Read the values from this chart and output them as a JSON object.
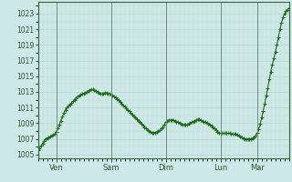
{
  "background_color": "#cce8e8",
  "plot_bg_color": "#cce8e8",
  "line_color": "#1a6e1a",
  "marker": "+",
  "marker_size": 2.5,
  "line_width": 0.8,
  "yticks": [
    1005,
    1007,
    1009,
    1011,
    1013,
    1015,
    1017,
    1019,
    1021,
    1023
  ],
  "ylim": [
    1004.5,
    1024.5
  ],
  "grid_color_major": "#b8d4b8",
  "grid_color_minor": "#c8dcc8",
  "tick_label_color": "#2a5a2a",
  "axis_label_color": "#2a5a2a",
  "xtick_labels": [
    "Ven",
    "Sam",
    "Dim",
    "Lun",
    "Mar"
  ],
  "xtick_positions": [
    12,
    48,
    84,
    120,
    144
  ],
  "vline_positions": [
    12,
    48,
    84,
    120,
    144
  ],
  "pressure": [
    1005.5,
    1005.8,
    1006.1,
    1006.4,
    1006.7,
    1007.0,
    1007.1,
    1007.2,
    1007.3,
    1007.4,
    1007.5,
    1007.6,
    1007.9,
    1008.3,
    1008.8,
    1009.3,
    1009.8,
    1010.3,
    1010.7,
    1011.0,
    1011.2,
    1011.4,
    1011.6,
    1011.8,
    1012.0,
    1012.2,
    1012.4,
    1012.5,
    1012.6,
    1012.7,
    1012.8,
    1012.9,
    1013.0,
    1013.1,
    1013.2,
    1013.3,
    1013.3,
    1013.2,
    1013.1,
    1013.0,
    1012.9,
    1012.8,
    1012.7,
    1012.8,
    1012.9,
    1012.9,
    1012.8,
    1012.7,
    1012.6,
    1012.5,
    1012.4,
    1012.3,
    1012.1,
    1011.9,
    1011.7,
    1011.5,
    1011.3,
    1011.1,
    1010.9,
    1010.7,
    1010.5,
    1010.3,
    1010.1,
    1009.9,
    1009.7,
    1009.5,
    1009.3,
    1009.1,
    1008.9,
    1008.7,
    1008.5,
    1008.3,
    1008.1,
    1008.0,
    1007.9,
    1007.8,
    1007.8,
    1007.8,
    1007.9,
    1008.0,
    1008.1,
    1008.3,
    1008.5,
    1008.8,
    1009.1,
    1009.3,
    1009.4,
    1009.4,
    1009.4,
    1009.4,
    1009.3,
    1009.2,
    1009.1,
    1009.0,
    1008.9,
    1008.8,
    1008.8,
    1008.8,
    1008.8,
    1008.9,
    1009.0,
    1009.1,
    1009.2,
    1009.3,
    1009.4,
    1009.5,
    1009.5,
    1009.4,
    1009.3,
    1009.2,
    1009.1,
    1009.0,
    1008.9,
    1008.8,
    1008.7,
    1008.5,
    1008.3,
    1008.1,
    1007.9,
    1007.8,
    1007.7,
    1007.7,
    1007.7,
    1007.7,
    1007.7,
    1007.7,
    1007.7,
    1007.6,
    1007.6,
    1007.6,
    1007.6,
    1007.5,
    1007.4,
    1007.3,
    1007.2,
    1007.1,
    1007.0,
    1007.0,
    1007.0,
    1007.0,
    1007.0,
    1007.1,
    1007.2,
    1007.4,
    1007.7,
    1008.2,
    1008.9,
    1009.7,
    1010.6,
    1011.5,
    1012.5,
    1013.5,
    1014.6,
    1015.6,
    1016.5,
    1017.3,
    1018.1,
    1019.0,
    1020.0,
    1021.0,
    1021.8,
    1022.5,
    1023.0,
    1023.3,
    1023.5,
    1023.7
  ]
}
